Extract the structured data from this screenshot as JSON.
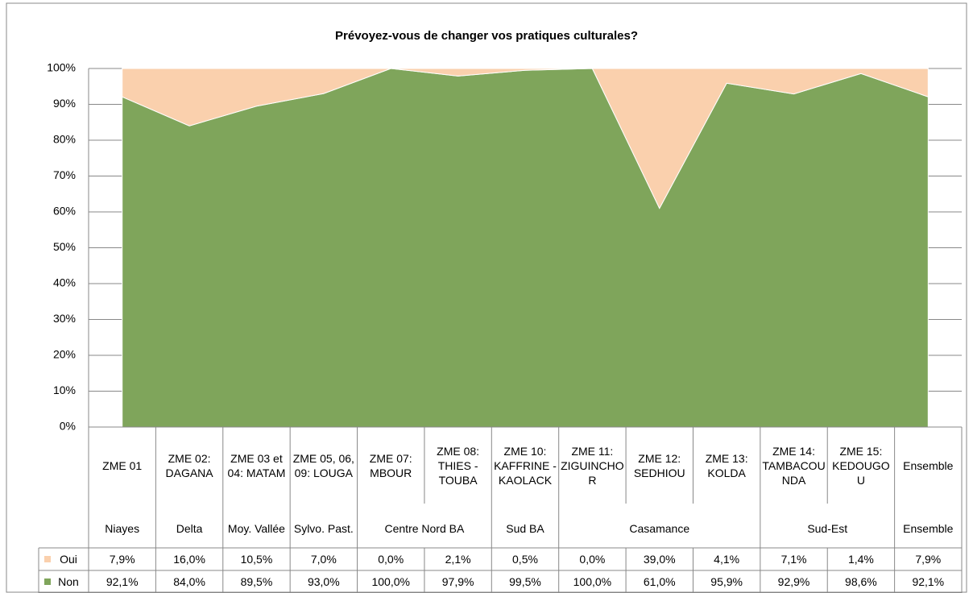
{
  "chart_data": {
    "type": "stacked-area",
    "title": "Prévoyez-vous de changer vos pratiques culturales?",
    "categories": [
      "ZME 01",
      "ZME 02: DAGANA",
      "ZME 03 et 04: MATAM",
      "ZME 05, 06, 09: LOUGA",
      "ZME 07: MBOUR",
      "ZME 08: THIES - TOUBA",
      "ZME 10: KAFFRINE - KAOLACK",
      "ZME 11: ZIGUINCHOR",
      "ZME 12: SEDHIOU",
      "ZME 13: KOLDA",
      "ZME 14: TAMBACOUNDA",
      "ZME 15: KEDOUGOU",
      "Ensemble"
    ],
    "group_labels": [
      "Niayes",
      "Delta",
      "Moy. Vallée",
      "Sylvo. Past.",
      "Centre Nord BA",
      null,
      "Sud BA",
      "Casamance",
      null,
      null,
      "Sud-Est",
      null,
      "Ensemble"
    ],
    "series": [
      {
        "name": "Oui",
        "color": "#fad0ad",
        "values": [
          7.9,
          16.0,
          10.5,
          7.0,
          0.0,
          2.1,
          0.5,
          0.0,
          39.0,
          4.1,
          7.1,
          1.4,
          7.9
        ],
        "value_labels": [
          "7,9%",
          "16,0%",
          "10,5%",
          "7,0%",
          "0,0%",
          "2,1%",
          "0,5%",
          "0,0%",
          "39,0%",
          "4,1%",
          "7,1%",
          "1,4%",
          "7,9%"
        ]
      },
      {
        "name": "Non",
        "color": "#7fa55b",
        "values": [
          92.1,
          84.0,
          89.5,
          93.0,
          100.0,
          97.9,
          99.5,
          100.0,
          61.0,
          95.9,
          92.9,
          98.6,
          92.1
        ],
        "value_labels": [
          "92,1%",
          "84,0%",
          "89,5%",
          "93,0%",
          "100,0%",
          "97,9%",
          "99,5%",
          "100,0%",
          "61,0%",
          "95,9%",
          "92,9%",
          "98,6%",
          "92,1%"
        ]
      }
    ],
    "ylim": [
      0,
      100
    ],
    "yticks": [
      {
        "value": 0,
        "label": "0%"
      },
      {
        "value": 10,
        "label": "10%"
      },
      {
        "value": 20,
        "label": "20%"
      },
      {
        "value": 30,
        "label": "30%"
      },
      {
        "value": 40,
        "label": "40%"
      },
      {
        "value": 50,
        "label": "50%"
      },
      {
        "value": 60,
        "label": "60%"
      },
      {
        "value": 70,
        "label": "70%"
      },
      {
        "value": 80,
        "label": "80%"
      },
      {
        "value": 90,
        "label": "90%"
      },
      {
        "value": 100,
        "label": "100%"
      }
    ],
    "grid": true
  }
}
